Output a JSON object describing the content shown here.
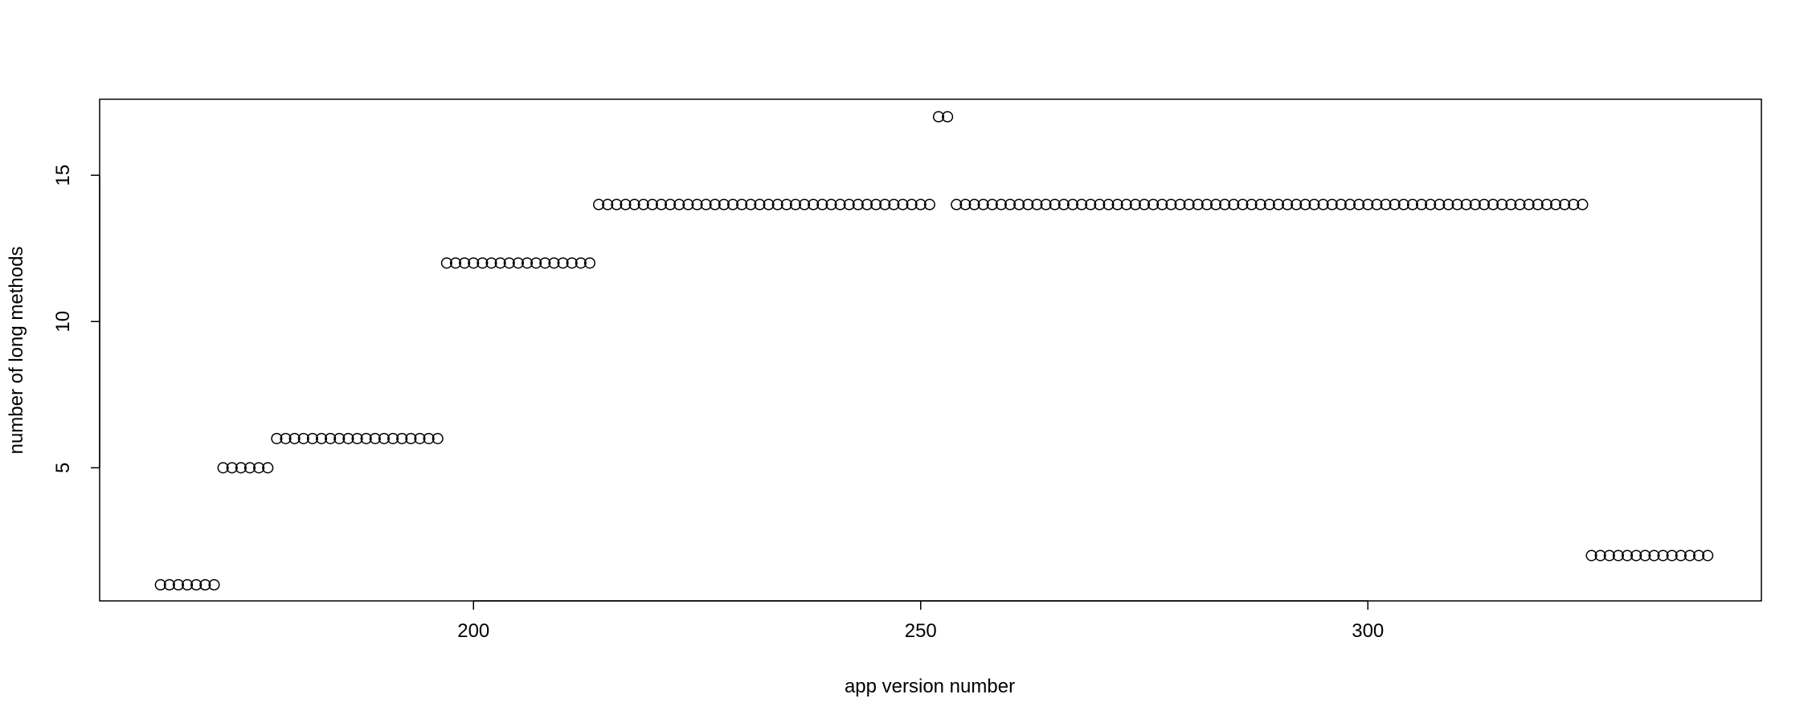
{
  "chart_data": {
    "type": "scatter",
    "title": "",
    "xlabel": "app version number",
    "ylabel": "number of long methods",
    "xlim": [
      158.2,
      344
    ],
    "ylim": [
      0.45,
      17.6
    ],
    "x_ticks": [
      200,
      250,
      300
    ],
    "y_ticks": [
      5,
      10,
      15
    ],
    "grid": false,
    "legend": "none",
    "point_style": "open-circle",
    "colors": {
      "points": "#000000",
      "axes": "#000000",
      "background": "#ffffff"
    },
    "series": [
      {
        "points": [
          [
            165,
            1
          ],
          [
            166,
            1
          ],
          [
            167,
            1
          ],
          [
            168,
            1
          ],
          [
            169,
            1
          ],
          [
            170,
            1
          ],
          [
            171,
            1
          ],
          [
            172,
            5
          ],
          [
            173,
            5
          ],
          [
            174,
            5
          ],
          [
            175,
            5
          ],
          [
            176,
            5
          ],
          [
            177,
            5
          ],
          [
            178,
            6
          ],
          [
            179,
            6
          ],
          [
            180,
            6
          ],
          [
            181,
            6
          ],
          [
            182,
            6
          ],
          [
            183,
            6
          ],
          [
            184,
            6
          ],
          [
            185,
            6
          ],
          [
            186,
            6
          ],
          [
            187,
            6
          ],
          [
            188,
            6
          ],
          [
            189,
            6
          ],
          [
            190,
            6
          ],
          [
            191,
            6
          ],
          [
            192,
            6
          ],
          [
            193,
            6
          ],
          [
            194,
            6
          ],
          [
            195,
            6
          ],
          [
            196,
            6
          ],
          [
            197,
            12
          ],
          [
            198,
            12
          ],
          [
            199,
            12
          ],
          [
            200,
            12
          ],
          [
            201,
            12
          ],
          [
            202,
            12
          ],
          [
            203,
            12
          ],
          [
            204,
            12
          ],
          [
            205,
            12
          ],
          [
            206,
            12
          ],
          [
            207,
            12
          ],
          [
            208,
            12
          ],
          [
            209,
            12
          ],
          [
            210,
            12
          ],
          [
            211,
            12
          ],
          [
            212,
            12
          ],
          [
            213,
            12
          ],
          [
            214,
            14
          ],
          [
            215,
            14
          ],
          [
            216,
            14
          ],
          [
            217,
            14
          ],
          [
            218,
            14
          ],
          [
            219,
            14
          ],
          [
            220,
            14
          ],
          [
            221,
            14
          ],
          [
            222,
            14
          ],
          [
            223,
            14
          ],
          [
            224,
            14
          ],
          [
            225,
            14
          ],
          [
            226,
            14
          ],
          [
            227,
            14
          ],
          [
            228,
            14
          ],
          [
            229,
            14
          ],
          [
            230,
            14
          ],
          [
            231,
            14
          ],
          [
            232,
            14
          ],
          [
            233,
            14
          ],
          [
            234,
            14
          ],
          [
            235,
            14
          ],
          [
            236,
            14
          ],
          [
            237,
            14
          ],
          [
            238,
            14
          ],
          [
            239,
            14
          ],
          [
            240,
            14
          ],
          [
            241,
            14
          ],
          [
            242,
            14
          ],
          [
            243,
            14
          ],
          [
            244,
            14
          ],
          [
            245,
            14
          ],
          [
            246,
            14
          ],
          [
            247,
            14
          ],
          [
            248,
            14
          ],
          [
            249,
            14
          ],
          [
            250,
            14
          ],
          [
            251,
            14
          ],
          [
            252,
            17
          ],
          [
            253,
            17
          ],
          [
            254,
            14
          ],
          [
            255,
            14
          ],
          [
            256,
            14
          ],
          [
            257,
            14
          ],
          [
            258,
            14
          ],
          [
            259,
            14
          ],
          [
            260,
            14
          ],
          [
            261,
            14
          ],
          [
            262,
            14
          ],
          [
            263,
            14
          ],
          [
            264,
            14
          ],
          [
            265,
            14
          ],
          [
            266,
            14
          ],
          [
            267,
            14
          ],
          [
            268,
            14
          ],
          [
            269,
            14
          ],
          [
            270,
            14
          ],
          [
            271,
            14
          ],
          [
            272,
            14
          ],
          [
            273,
            14
          ],
          [
            274,
            14
          ],
          [
            275,
            14
          ],
          [
            276,
            14
          ],
          [
            277,
            14
          ],
          [
            278,
            14
          ],
          [
            279,
            14
          ],
          [
            280,
            14
          ],
          [
            281,
            14
          ],
          [
            282,
            14
          ],
          [
            283,
            14
          ],
          [
            284,
            14
          ],
          [
            285,
            14
          ],
          [
            286,
            14
          ],
          [
            287,
            14
          ],
          [
            288,
            14
          ],
          [
            289,
            14
          ],
          [
            290,
            14
          ],
          [
            291,
            14
          ],
          [
            292,
            14
          ],
          [
            293,
            14
          ],
          [
            294,
            14
          ],
          [
            295,
            14
          ],
          [
            296,
            14
          ],
          [
            297,
            14
          ],
          [
            298,
            14
          ],
          [
            299,
            14
          ],
          [
            300,
            14
          ],
          [
            301,
            14
          ],
          [
            302,
            14
          ],
          [
            303,
            14
          ],
          [
            304,
            14
          ],
          [
            305,
            14
          ],
          [
            306,
            14
          ],
          [
            307,
            14
          ],
          [
            308,
            14
          ],
          [
            309,
            14
          ],
          [
            310,
            14
          ],
          [
            311,
            14
          ],
          [
            312,
            14
          ],
          [
            313,
            14
          ],
          [
            314,
            14
          ],
          [
            315,
            14
          ],
          [
            316,
            14
          ],
          [
            317,
            14
          ],
          [
            318,
            14
          ],
          [
            319,
            14
          ],
          [
            320,
            14
          ],
          [
            321,
            14
          ],
          [
            322,
            14
          ],
          [
            323,
            14
          ],
          [
            324,
            14
          ],
          [
            325,
            2
          ],
          [
            326,
            2
          ],
          [
            327,
            2
          ],
          [
            328,
            2
          ],
          [
            329,
            2
          ],
          [
            330,
            2
          ],
          [
            331,
            2
          ],
          [
            332,
            2
          ],
          [
            333,
            2
          ],
          [
            334,
            2
          ],
          [
            335,
            2
          ],
          [
            336,
            2
          ],
          [
            337,
            2
          ],
          [
            338,
            2
          ]
        ]
      }
    ]
  }
}
